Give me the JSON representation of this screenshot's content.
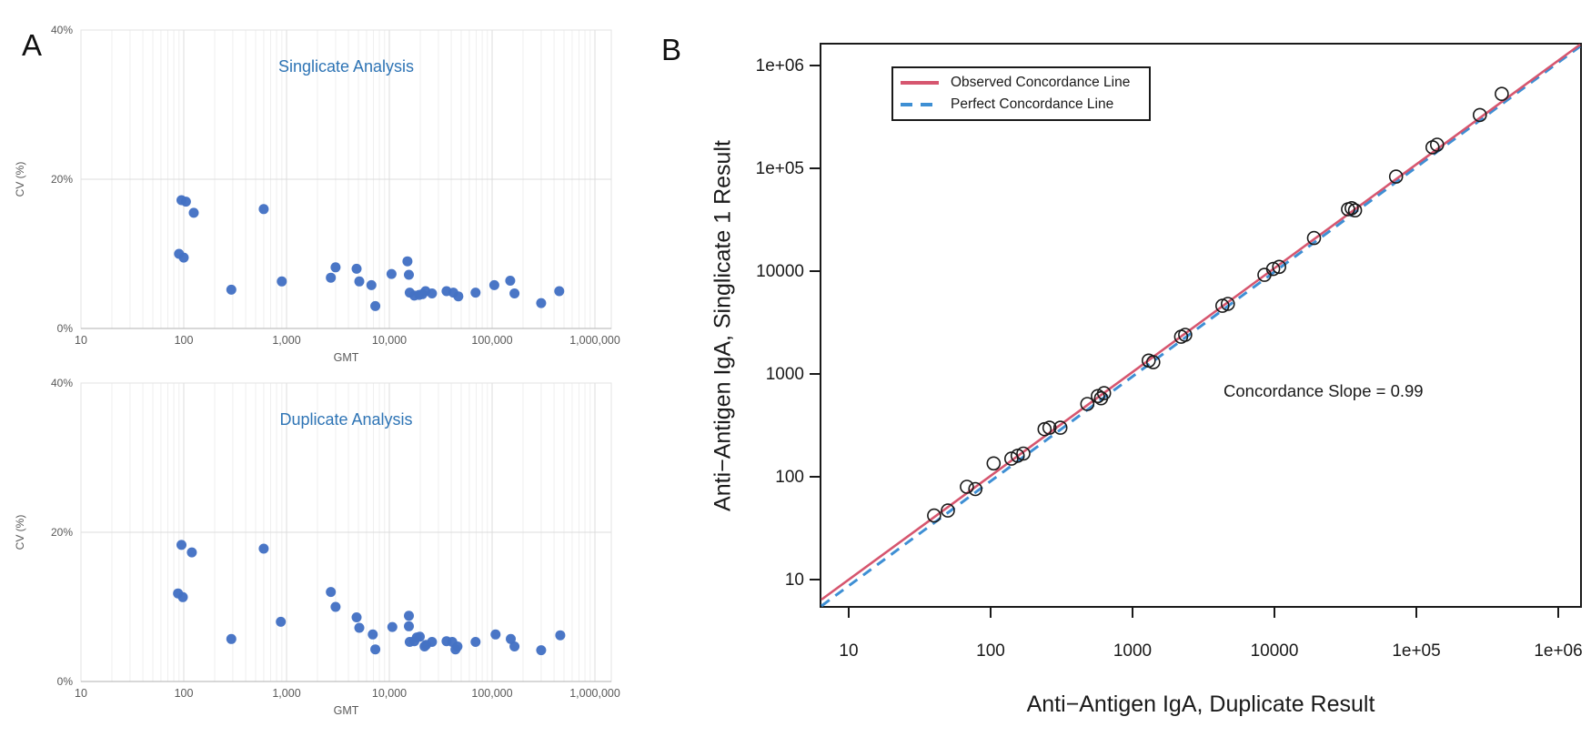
{
  "panels": {
    "a": {
      "label": "A"
    },
    "b": {
      "label": "B"
    }
  },
  "colors": {
    "scatter_point": "#4472c4",
    "panel_a_title": "#2e74b5",
    "axis_text_gray": "#595959",
    "observed_line": "#d6566f",
    "perfect_line": "#3e8fd4",
    "marker_stroke": "#1a1a1a"
  },
  "chart_data": [
    {
      "id": "singlicate-cv",
      "type": "scatter",
      "title": "Singlicate Analysis",
      "xlabel": "GMT",
      "ylabel": "CV (%)",
      "x_scale": "log",
      "xlim": [
        10,
        1000000
      ],
      "ylim": [
        0,
        40
      ],
      "grid": true,
      "x_ticks": [
        "10",
        "100",
        "1,000",
        "10,000",
        "100,000",
        "1,000,000"
      ],
      "y_ticks": [
        "0%",
        "20%",
        "40%"
      ],
      "points": [
        [
          95,
          17.2
        ],
        [
          105,
          17.0
        ],
        [
          125,
          15.5
        ],
        [
          90,
          10.0
        ],
        [
          100,
          9.5
        ],
        [
          600,
          16.0
        ],
        [
          290,
          5.2
        ],
        [
          900,
          6.3
        ],
        [
          2700,
          6.8
        ],
        [
          3000,
          8.2
        ],
        [
          4800,
          8.0
        ],
        [
          5100,
          6.3
        ],
        [
          6700,
          5.8
        ],
        [
          7300,
          3.0
        ],
        [
          10500,
          7.3
        ],
        [
          15000,
          9.0
        ],
        [
          15500,
          7.2
        ],
        [
          15800,
          4.8
        ],
        [
          17500,
          4.4
        ],
        [
          19500,
          4.5
        ],
        [
          21000,
          4.6
        ],
        [
          22500,
          5.0
        ],
        [
          26000,
          4.7
        ],
        [
          36000,
          5.0
        ],
        [
          42000,
          4.8
        ],
        [
          47000,
          4.3
        ],
        [
          69000,
          4.8
        ],
        [
          105000,
          5.8
        ],
        [
          150000,
          6.4
        ],
        [
          165000,
          4.7
        ],
        [
          300000,
          3.4
        ],
        [
          450000,
          5.0
        ]
      ]
    },
    {
      "id": "duplicate-cv",
      "type": "scatter",
      "title": "Duplicate Analysis",
      "xlabel": "GMT",
      "ylabel": "CV (%)",
      "x_scale": "log",
      "xlim": [
        10,
        1000000
      ],
      "ylim": [
        0,
        40
      ],
      "grid": true,
      "x_ticks": [
        "10",
        "100",
        "1,000",
        "10,000",
        "100,000",
        "1,000,000"
      ],
      "y_ticks": [
        "0%",
        "20%",
        "40%"
      ],
      "points": [
        [
          95,
          18.3
        ],
        [
          120,
          17.3
        ],
        [
          600,
          17.8
        ],
        [
          88,
          11.8
        ],
        [
          98,
          11.3
        ],
        [
          290,
          5.7
        ],
        [
          880,
          8.0
        ],
        [
          2700,
          12.0
        ],
        [
          3000,
          10.0
        ],
        [
          4800,
          8.6
        ],
        [
          5100,
          7.2
        ],
        [
          6900,
          6.3
        ],
        [
          7300,
          4.3
        ],
        [
          10700,
          7.3
        ],
        [
          15500,
          8.8
        ],
        [
          15500,
          7.4
        ],
        [
          15800,
          5.3
        ],
        [
          17500,
          5.4
        ],
        [
          18500,
          5.9
        ],
        [
          19800,
          6.0
        ],
        [
          22000,
          4.7
        ],
        [
          22800,
          4.9
        ],
        [
          26000,
          5.3
        ],
        [
          36000,
          5.4
        ],
        [
          41000,
          5.3
        ],
        [
          44000,
          4.3
        ],
        [
          46000,
          4.7
        ],
        [
          69000,
          5.3
        ],
        [
          108000,
          6.3
        ],
        [
          152000,
          5.7
        ],
        [
          165000,
          4.7
        ],
        [
          300000,
          4.2
        ],
        [
          460000,
          6.2
        ]
      ]
    },
    {
      "id": "concordance",
      "type": "scatter",
      "xlabel": "Anti−Antigen IgA, Duplicate Result",
      "ylabel": "Anti−Antigen IgA, Singlicate 1 Result",
      "x_scale": "log",
      "y_scale": "log",
      "xlim": [
        6,
        1400000
      ],
      "ylim": [
        5,
        1600000
      ],
      "grid": false,
      "x_ticks": [
        "10",
        "100",
        "1000",
        "10000",
        "1e+05",
        "1e+06"
      ],
      "y_ticks": [
        "10",
        "100",
        "1000",
        "10000",
        "1e+05",
        "1e+06"
      ],
      "annotation": "Concordance Slope = 0.99",
      "concordance_slope": 0.99,
      "marker": "open-circle",
      "legend": [
        {
          "label": "Observed Concordance Line",
          "color": "#d6566f",
          "style": "solid"
        },
        {
          "label": "Perfect Concordance Line",
          "color": "#3e8fd4",
          "style": "dashed"
        }
      ],
      "points": [
        [
          40,
          42
        ],
        [
          50,
          47
        ],
        [
          68,
          80
        ],
        [
          78,
          76
        ],
        [
          105,
          135
        ],
        [
          140,
          150
        ],
        [
          155,
          160
        ],
        [
          170,
          168
        ],
        [
          240,
          290
        ],
        [
          260,
          300
        ],
        [
          310,
          300
        ],
        [
          480,
          510
        ],
        [
          570,
          610
        ],
        [
          600,
          580
        ],
        [
          630,
          650
        ],
        [
          1300,
          1350
        ],
        [
          1400,
          1300
        ],
        [
          2200,
          2300
        ],
        [
          2350,
          2400
        ],
        [
          4300,
          4600
        ],
        [
          4700,
          4800
        ],
        [
          8500,
          9200
        ],
        [
          9800,
          10500
        ],
        [
          10800,
          11000
        ],
        [
          19000,
          21000
        ],
        [
          33000,
          40000
        ],
        [
          35000,
          41000
        ],
        [
          37000,
          39000
        ],
        [
          72000,
          83000
        ],
        [
          130000,
          160000
        ],
        [
          140000,
          170000
        ],
        [
          280000,
          330000
        ],
        [
          400000,
          530000
        ]
      ]
    }
  ]
}
